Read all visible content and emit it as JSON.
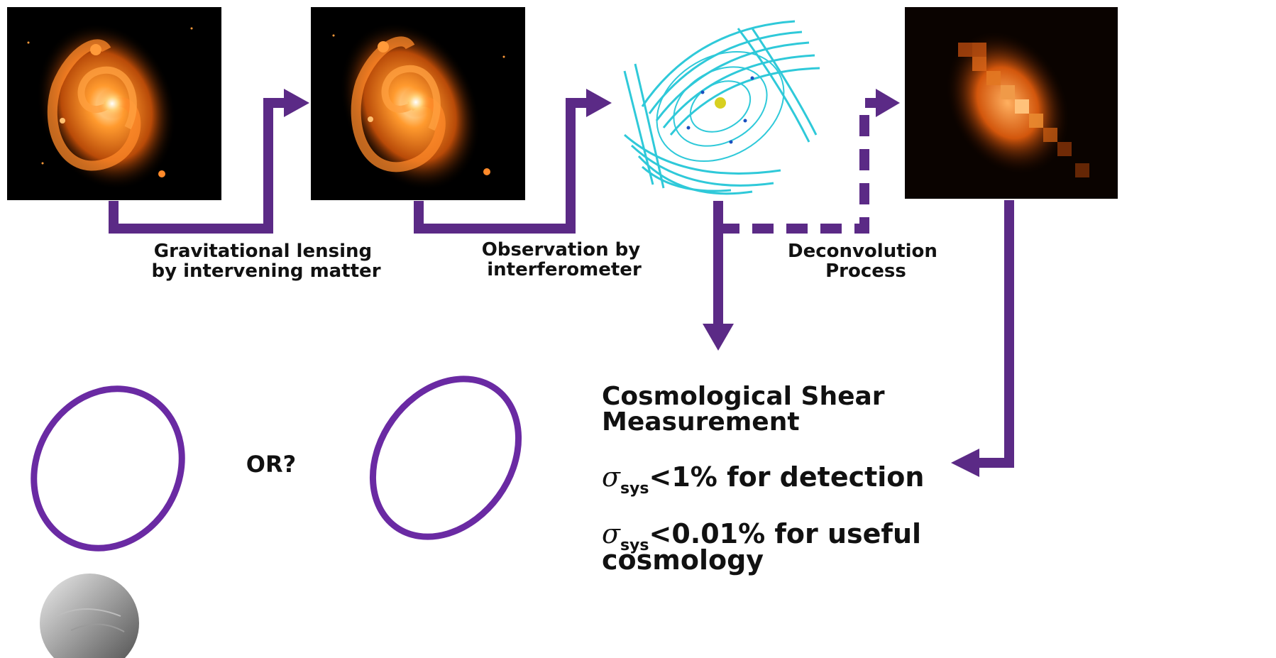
{
  "colors": {
    "arrow": "#5b2a86",
    "ellipse": "#6a2aa3",
    "galaxy": "#e8701a",
    "galaxy_core": "#ffe6b0",
    "uv_coverage": "#2fc9d9",
    "background_panel": "#000000"
  },
  "panels": [
    {
      "name": "source-galaxy",
      "icon": "spiral-galaxy-image"
    },
    {
      "name": "lensed-galaxy",
      "icon": "spiral-galaxy-image"
    },
    {
      "name": "uv-coverage",
      "icon": "interferometer-uv-coverage-image"
    },
    {
      "name": "deconvolved-galaxy",
      "icon": "pixelated-galaxy-image"
    }
  ],
  "steps": {
    "lensing": [
      "Gravitational lensing",
      "by intervening matter"
    ],
    "observation": [
      "Observation by",
      "interferometer"
    ],
    "deconvolution": [
      "Deconvolution",
      "Process"
    ]
  },
  "comparison": {
    "or_label": "OR?"
  },
  "measurement": {
    "title": [
      "Cosmological Shear",
      "Measurement"
    ],
    "req1": {
      "symbol": "σ",
      "sub": "sys",
      "text": "<1% for detection"
    },
    "req2": {
      "symbol": "σ",
      "sub": "sys",
      "text_line1": "<0.01% for useful",
      "text_line2": "cosmology"
    }
  }
}
